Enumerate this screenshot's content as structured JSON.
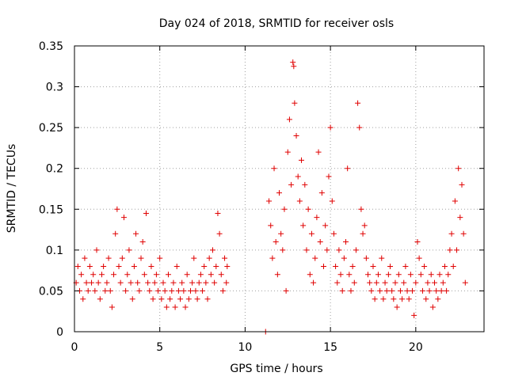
{
  "chart_data": {
    "type": "scatter",
    "title": "Day 024 of 2018, SRMTID for receiver osls",
    "xlabel": "GPS time / hours",
    "ylabel": "SRMTID / TECUs",
    "xlim": [
      0,
      24
    ],
    "ylim": [
      0,
      0.35
    ],
    "xticks": [
      0,
      5,
      10,
      15,
      20
    ],
    "xtick_labels": [
      "0",
      "5",
      "10",
      "15",
      "20"
    ],
    "yticks": [
      0,
      0.05,
      0.1,
      0.15,
      0.2,
      0.25,
      0.3,
      0.35
    ],
    "ytick_labels": [
      "0",
      "0.05",
      "0.1",
      "0.15",
      "0.2",
      "0.25",
      "0.3",
      "0.35"
    ],
    "grid": true,
    "marker": "plus",
    "color": "#e00000",
    "series": [
      {
        "name": "SRMTID",
        "points": [
          [
            0.1,
            0.06
          ],
          [
            0.2,
            0.08
          ],
          [
            0.3,
            0.05
          ],
          [
            0.4,
            0.07
          ],
          [
            0.5,
            0.04
          ],
          [
            0.6,
            0.09
          ],
          [
            0.7,
            0.06
          ],
          [
            0.8,
            0.05
          ],
          [
            0.9,
            0.08
          ],
          [
            1.0,
            0.06
          ],
          [
            1.1,
            0.07
          ],
          [
            1.2,
            0.05
          ],
          [
            1.3,
            0.1
          ],
          [
            1.4,
            0.06
          ],
          [
            1.5,
            0.04
          ],
          [
            1.6,
            0.07
          ],
          [
            1.7,
            0.08
          ],
          [
            1.8,
            0.05
          ],
          [
            1.9,
            0.06
          ],
          [
            2.0,
            0.09
          ],
          [
            2.1,
            0.05
          ],
          [
            2.2,
            0.03
          ],
          [
            2.3,
            0.07
          ],
          [
            2.4,
            0.12
          ],
          [
            2.5,
            0.15
          ],
          [
            2.6,
            0.08
          ],
          [
            2.7,
            0.06
          ],
          [
            2.8,
            0.09
          ],
          [
            2.9,
            0.14
          ],
          [
            3.0,
            0.05
          ],
          [
            3.1,
            0.07
          ],
          [
            3.2,
            0.1
          ],
          [
            3.3,
            0.06
          ],
          [
            3.4,
            0.04
          ],
          [
            3.5,
            0.08
          ],
          [
            3.6,
            0.12
          ],
          [
            3.7,
            0.06
          ],
          [
            3.8,
            0.05
          ],
          [
            3.9,
            0.09
          ],
          [
            4.0,
            0.11
          ],
          [
            4.1,
            0.07
          ],
          [
            4.2,
            0.145
          ],
          [
            4.3,
            0.06
          ],
          [
            4.4,
            0.05
          ],
          [
            4.5,
            0.08
          ],
          [
            4.6,
            0.04
          ],
          [
            4.7,
            0.06
          ],
          [
            4.8,
            0.07
          ],
          [
            4.9,
            0.05
          ],
          [
            5.0,
            0.09
          ],
          [
            5.1,
            0.04
          ],
          [
            5.2,
            0.06
          ],
          [
            5.3,
            0.05
          ],
          [
            5.4,
            0.03
          ],
          [
            5.5,
            0.07
          ],
          [
            5.6,
            0.04
          ],
          [
            5.7,
            0.05
          ],
          [
            5.8,
            0.06
          ],
          [
            5.9,
            0.03
          ],
          [
            6.0,
            0.08
          ],
          [
            6.1,
            0.05
          ],
          [
            6.2,
            0.04
          ],
          [
            6.3,
            0.06
          ],
          [
            6.4,
            0.05
          ],
          [
            6.5,
            0.03
          ],
          [
            6.6,
            0.07
          ],
          [
            6.7,
            0.04
          ],
          [
            6.8,
            0.05
          ],
          [
            6.9,
            0.06
          ],
          [
            7.0,
            0.09
          ],
          [
            7.1,
            0.05
          ],
          [
            7.2,
            0.04
          ],
          [
            7.3,
            0.06
          ],
          [
            7.4,
            0.07
          ],
          [
            7.5,
            0.05
          ],
          [
            7.6,
            0.08
          ],
          [
            7.7,
            0.06
          ],
          [
            7.8,
            0.04
          ],
          [
            7.9,
            0.09
          ],
          [
            8.0,
            0.07
          ],
          [
            8.1,
            0.1
          ],
          [
            8.2,
            0.06
          ],
          [
            8.3,
            0.08
          ],
          [
            8.4,
            0.145
          ],
          [
            8.5,
            0.12
          ],
          [
            8.6,
            0.07
          ],
          [
            8.7,
            0.05
          ],
          [
            8.8,
            0.09
          ],
          [
            8.9,
            0.06
          ],
          [
            8.95,
            0.08
          ],
          [
            11.2,
            0.0
          ],
          [
            11.4,
            0.16
          ],
          [
            11.5,
            0.13
          ],
          [
            11.6,
            0.09
          ],
          [
            11.7,
            0.2
          ],
          [
            11.8,
            0.11
          ],
          [
            11.9,
            0.07
          ],
          [
            12.0,
            0.17
          ],
          [
            12.1,
            0.12
          ],
          [
            12.2,
            0.1
          ],
          [
            12.3,
            0.15
          ],
          [
            12.4,
            0.05
          ],
          [
            12.5,
            0.22
          ],
          [
            12.6,
            0.26
          ],
          [
            12.7,
            0.18
          ],
          [
            12.8,
            0.33
          ],
          [
            12.85,
            0.325
          ],
          [
            12.9,
            0.28
          ],
          [
            13.0,
            0.24
          ],
          [
            13.1,
            0.19
          ],
          [
            13.2,
            0.16
          ],
          [
            13.3,
            0.21
          ],
          [
            13.4,
            0.13
          ],
          [
            13.5,
            0.18
          ],
          [
            13.6,
            0.1
          ],
          [
            13.7,
            0.15
          ],
          [
            13.8,
            0.07
          ],
          [
            13.9,
            0.12
          ],
          [
            14.0,
            0.06
          ],
          [
            14.1,
            0.09
          ],
          [
            14.2,
            0.14
          ],
          [
            14.3,
            0.22
          ],
          [
            14.4,
            0.11
          ],
          [
            14.5,
            0.17
          ],
          [
            14.6,
            0.08
          ],
          [
            14.7,
            0.13
          ],
          [
            14.8,
            0.1
          ],
          [
            14.9,
            0.19
          ],
          [
            15.0,
            0.25
          ],
          [
            15.1,
            0.16
          ],
          [
            15.2,
            0.12
          ],
          [
            15.3,
            0.08
          ],
          [
            15.4,
            0.06
          ],
          [
            15.5,
            0.1
          ],
          [
            15.6,
            0.07
          ],
          [
            15.7,
            0.05
          ],
          [
            15.8,
            0.09
          ],
          [
            15.9,
            0.11
          ],
          [
            16.0,
            0.2
          ],
          [
            16.1,
            0.07
          ],
          [
            16.2,
            0.05
          ],
          [
            16.3,
            0.08
          ],
          [
            16.4,
            0.06
          ],
          [
            16.5,
            0.1
          ],
          [
            16.6,
            0.28
          ],
          [
            16.7,
            0.25
          ],
          [
            16.8,
            0.15
          ],
          [
            16.9,
            0.12
          ],
          [
            17.0,
            0.13
          ],
          [
            17.1,
            0.09
          ],
          [
            17.2,
            0.07
          ],
          [
            17.3,
            0.06
          ],
          [
            17.4,
            0.05
          ],
          [
            17.5,
            0.08
          ],
          [
            17.6,
            0.04
          ],
          [
            17.7,
            0.06
          ],
          [
            17.8,
            0.07
          ],
          [
            17.9,
            0.05
          ],
          [
            18.0,
            0.09
          ],
          [
            18.1,
            0.04
          ],
          [
            18.2,
            0.06
          ],
          [
            18.3,
            0.05
          ],
          [
            18.4,
            0.07
          ],
          [
            18.5,
            0.08
          ],
          [
            18.6,
            0.05
          ],
          [
            18.7,
            0.04
          ],
          [
            18.8,
            0.06
          ],
          [
            18.9,
            0.03
          ],
          [
            19.0,
            0.07
          ],
          [
            19.1,
            0.05
          ],
          [
            19.2,
            0.04
          ],
          [
            19.3,
            0.06
          ],
          [
            19.4,
            0.08
          ],
          [
            19.5,
            0.05
          ],
          [
            19.6,
            0.04
          ],
          [
            19.7,
            0.07
          ],
          [
            19.8,
            0.05
          ],
          [
            19.9,
            0.02
          ],
          [
            20.0,
            0.06
          ],
          [
            20.1,
            0.11
          ],
          [
            20.2,
            0.09
          ],
          [
            20.3,
            0.07
          ],
          [
            20.4,
            0.05
          ],
          [
            20.5,
            0.08
          ],
          [
            20.6,
            0.04
          ],
          [
            20.7,
            0.06
          ],
          [
            20.8,
            0.05
          ],
          [
            20.9,
            0.07
          ],
          [
            21.0,
            0.03
          ],
          [
            21.1,
            0.06
          ],
          [
            21.2,
            0.05
          ],
          [
            21.3,
            0.04
          ],
          [
            21.4,
            0.07
          ],
          [
            21.5,
            0.05
          ],
          [
            21.6,
            0.06
          ],
          [
            21.7,
            0.08
          ],
          [
            21.8,
            0.05
          ],
          [
            21.9,
            0.07
          ],
          [
            22.0,
            0.1
          ],
          [
            22.1,
            0.12
          ],
          [
            22.2,
            0.08
          ],
          [
            22.3,
            0.16
          ],
          [
            22.4,
            0.1
          ],
          [
            22.5,
            0.2
          ],
          [
            22.6,
            0.14
          ],
          [
            22.7,
            0.18
          ],
          [
            22.8,
            0.12
          ],
          [
            22.9,
            0.06
          ]
        ]
      }
    ]
  }
}
